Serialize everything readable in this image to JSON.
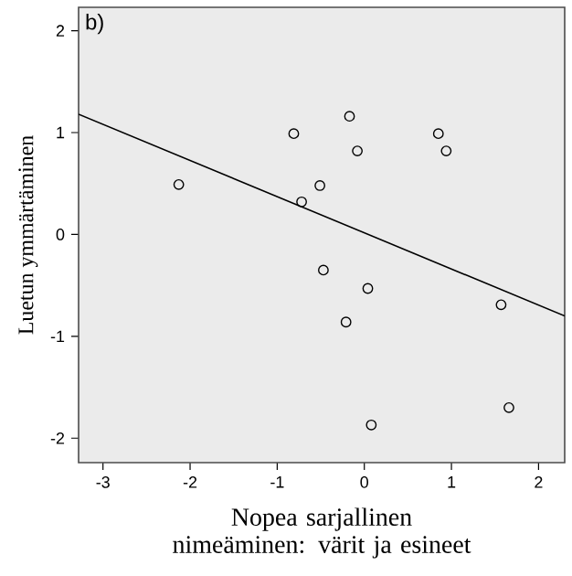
{
  "chart_data": {
    "type": "scatter",
    "xlabel": "Nopea sarjallinen nimeäminen: värit ja esineet",
    "ylabel": "Luetun ymmärtäminen",
    "annotations": [
      "b)"
    ],
    "xlim": [
      -3.28,
      2.3
    ],
    "ylim": [
      -2.24,
      2.23
    ],
    "xticks": [
      -3,
      -2,
      -1,
      0,
      1,
      2
    ],
    "yticks": [
      -2,
      -1,
      0,
      1,
      2
    ],
    "grid": false,
    "marker": "circle",
    "series": [
      {
        "color": "#000000",
        "x": [
          -2.13,
          -0.81,
          -0.17,
          -0.08,
          -0.51,
          -0.72,
          0.85,
          0.94,
          -0.47,
          0.04,
          -0.21,
          1.57,
          1.66,
          0.08
        ],
        "values": [
          0.49,
          0.99,
          1.16,
          0.82,
          0.48,
          0.32,
          0.99,
          0.82,
          -0.35,
          -0.53,
          -0.86,
          -0.69,
          -1.7,
          -1.87
        ]
      },
      {
        "type": "line",
        "color": "#000000",
        "line_style": "solid",
        "marker": "none",
        "x": [
          -3.28,
          2.3
        ],
        "values": [
          1.18,
          -0.8
        ]
      }
    ]
  }
}
